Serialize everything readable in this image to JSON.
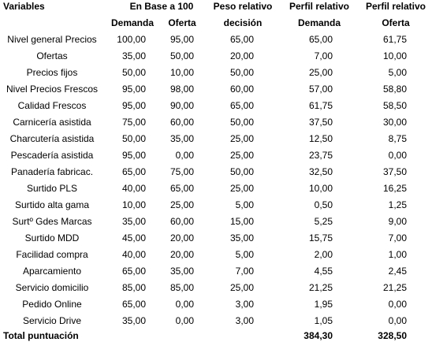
{
  "table": {
    "header_top": [
      "Variables",
      "En Base a 100",
      "Peso relativo",
      "Perfil relativo",
      "Perfil relativo"
    ],
    "header_bottom": [
      "Demanda",
      "Oferta",
      "decisión",
      "Demanda",
      "Oferta"
    ],
    "rows": [
      [
        "Nivel general Precios",
        "100,00",
        "95,00",
        "65,00",
        "65,00",
        "61,75"
      ],
      [
        "Ofertas",
        "35,00",
        "50,00",
        "20,00",
        "7,00",
        "10,00"
      ],
      [
        "Precios fijos",
        "50,00",
        "10,00",
        "50,00",
        "25,00",
        "5,00"
      ],
      [
        "Nivel Precios Frescos",
        "95,00",
        "98,00",
        "60,00",
        "57,00",
        "58,80"
      ],
      [
        "Calidad Frescos",
        "95,00",
        "90,00",
        "65,00",
        "61,75",
        "58,50"
      ],
      [
        "Carnicería asistida",
        "75,00",
        "60,00",
        "50,00",
        "37,50",
        "30,00"
      ],
      [
        "Charcutería asistida",
        "50,00",
        "35,00",
        "25,00",
        "12,50",
        "8,75"
      ],
      [
        "Pescadería asistida",
        "95,00",
        "0,00",
        "25,00",
        "23,75",
        "0,00"
      ],
      [
        "Panadería fabricac.",
        "65,00",
        "75,00",
        "50,00",
        "32,50",
        "37,50"
      ],
      [
        "Surtido PLS",
        "40,00",
        "65,00",
        "25,00",
        "10,00",
        "16,25"
      ],
      [
        "Surtido alta gama",
        "10,00",
        "25,00",
        "5,00",
        "0,50",
        "1,25"
      ],
      [
        "Surtº Gdes Marcas",
        "35,00",
        "60,00",
        "15,00",
        "5,25",
        "9,00"
      ],
      [
        "Surtido MDD",
        "45,00",
        "20,00",
        "35,00",
        "15,75",
        "7,00"
      ],
      [
        "Facilidad compra",
        "40,00",
        "20,00",
        "5,00",
        "2,00",
        "1,00"
      ],
      [
        "Aparcamiento",
        "65,00",
        "35,00",
        "7,00",
        "4,55",
        "2,45"
      ],
      [
        "Servicio domicilio",
        "85,00",
        "85,00",
        "25,00",
        "21,25",
        "21,25"
      ],
      [
        "Pedido Online",
        "65,00",
        "0,00",
        "3,00",
        "1,95",
        "0,00"
      ],
      [
        "Servicio Drive",
        "35,00",
        "0,00",
        "3,00",
        "1,05",
        "0,00"
      ]
    ],
    "total": {
      "label": "Total puntuación",
      "values": [
        "384,30",
        "328,50"
      ]
    }
  }
}
